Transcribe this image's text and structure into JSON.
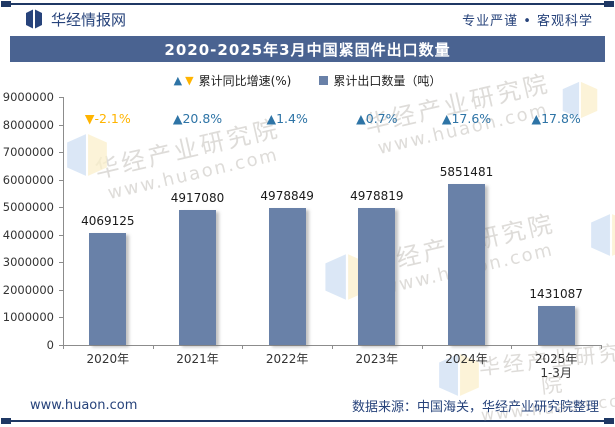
{
  "header": {
    "brand": "华经情报网",
    "slogan": "专业严谨 • 客观科学"
  },
  "title": "2020-2025年3月中国紧固件出口数量",
  "legend": {
    "growth": "累计同比增速(%)",
    "volume": "累计出口数量（吨）"
  },
  "chart_data": {
    "type": "bar",
    "title": "2020-2025年3月中国紧固件出口数量",
    "categories": [
      "2020年",
      "2021年",
      "2022年",
      "2023年",
      "2024年",
      "2025年\n1-3月"
    ],
    "series": [
      {
        "name": "累计出口数量（吨）",
        "type": "bar",
        "values": [
          4069125,
          4917080,
          4978849,
          4978819,
          5851481,
          1431087
        ]
      },
      {
        "name": "累计同比增速(%)",
        "type": "point-labels",
        "values": [
          -2.1,
          20.8,
          1.4,
          0.7,
          17.6,
          17.8
        ]
      }
    ],
    "ylim": [
      0,
      9000000
    ],
    "ytick_interval": 1000000,
    "grid": false,
    "legend_position": "top"
  },
  "watermark": {
    "line1": "华经产业研究院",
    "line2": "www.huaon.com"
  },
  "footer": {
    "website": "www.huaon.com",
    "source": "数据来源：中国海关，华经产业研究院整理"
  },
  "colors": {
    "bar": "#6981A8",
    "positive": "#2E74A6",
    "negative": "#FFB400",
    "title_band": "#4A6391",
    "navy": "#27437B",
    "border": "#1F3864",
    "axis": "#8C8C8C"
  }
}
